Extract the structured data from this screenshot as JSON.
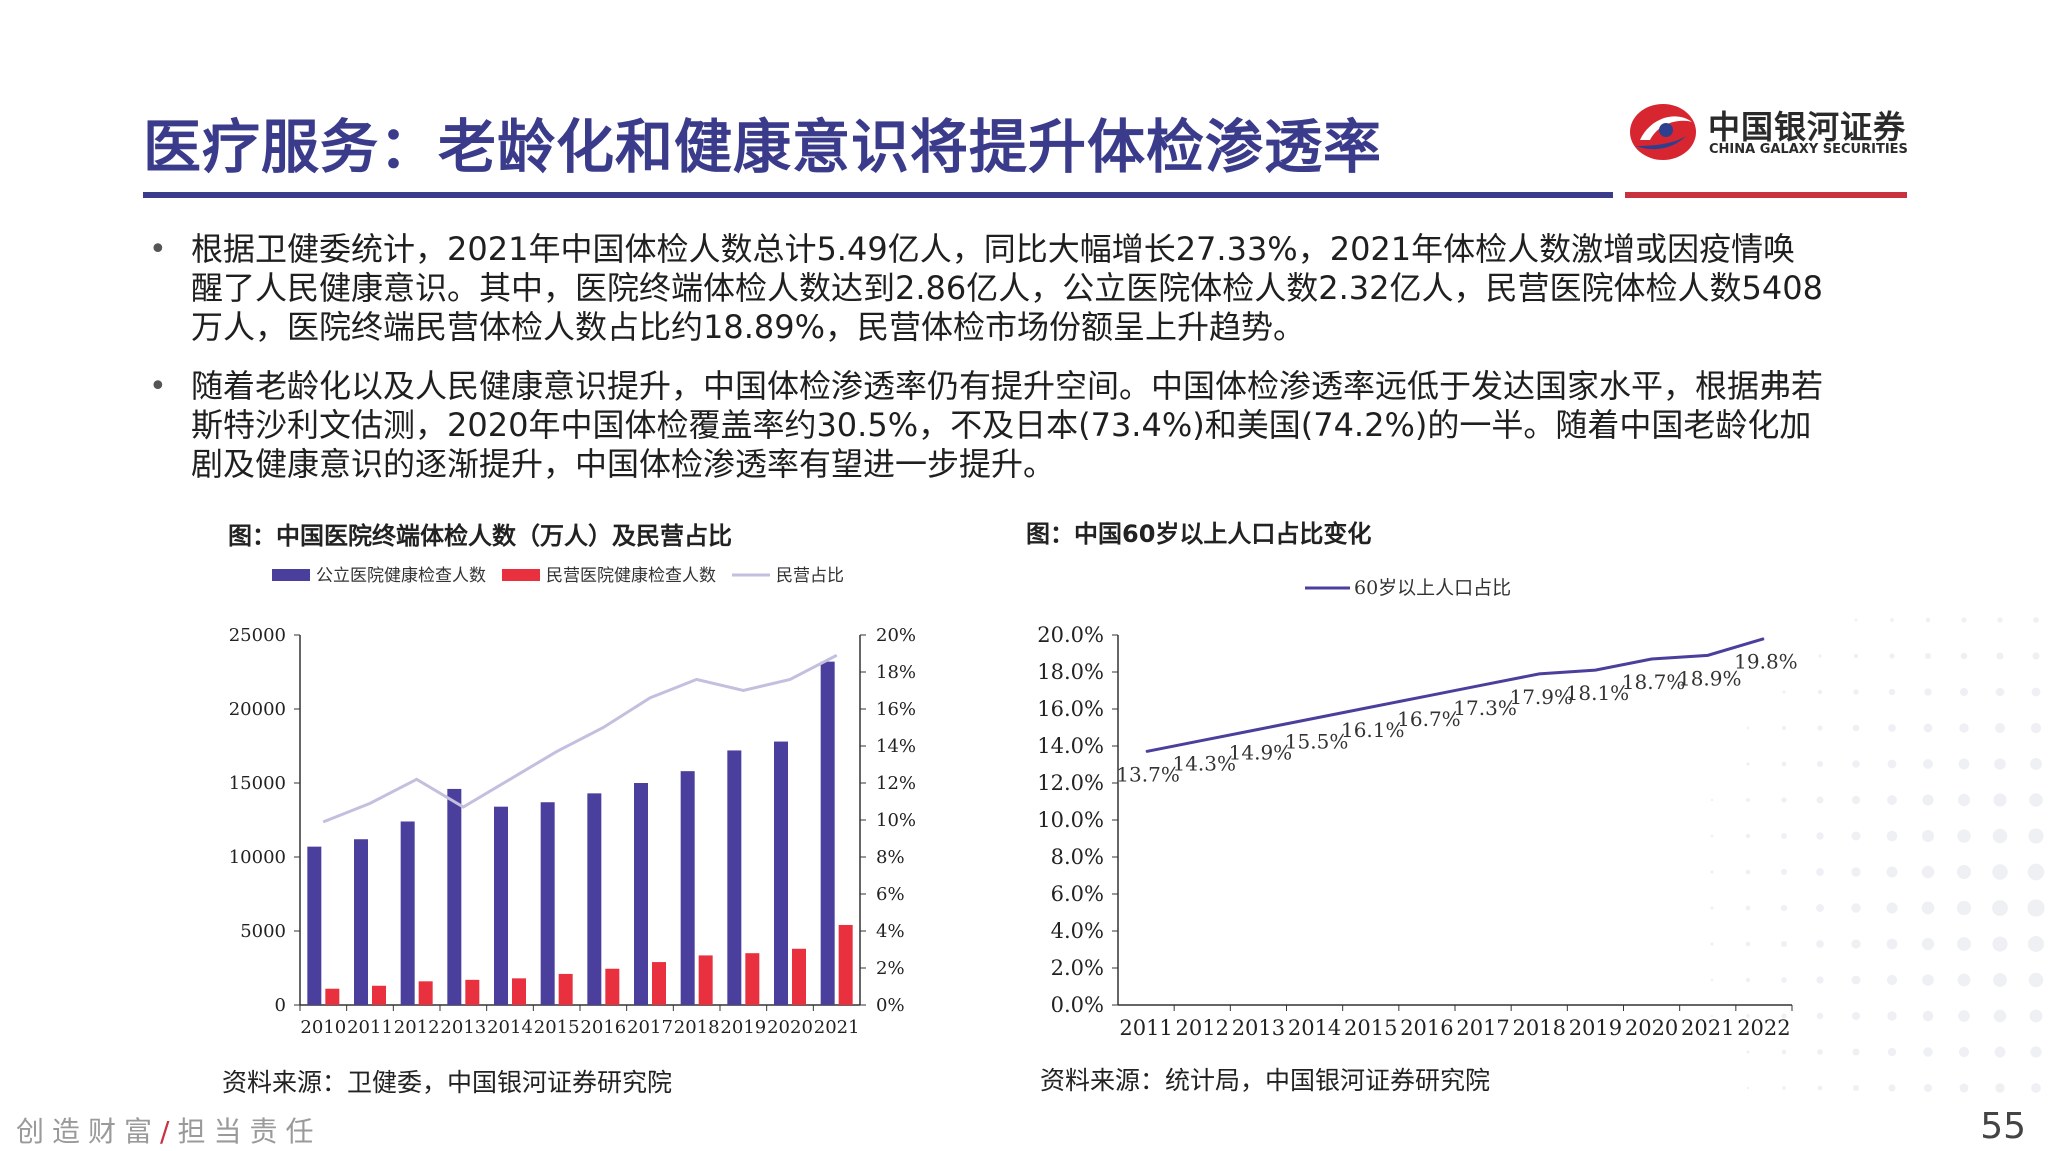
{
  "header": {
    "title": "医疗服务：老龄化和健康意识将提升体检渗透率",
    "logo_cn": "中国银河证券",
    "logo_en": "CHINA GALAXY SECURITIES",
    "brand_blue": "#3b3b8c",
    "brand_red": "#c8313e"
  },
  "bullets": [
    "根据卫健委统计，2021年中国体检人数总计5.49亿人，同比大幅增长27.33%，2021年体检人数激增或因疫情唤醒了人民健康意识。其中，医院终端体检人数达到2.86亿人，公立医院体检人数2.32亿人，民营医院体检人数5408万人，医院终端民营体检人数占比约18.89%，民营体检市场份额呈上升趋势。",
    "随着老龄化以及人民健康意识提升，中国体检渗透率仍有提升空间。中国体检渗透率远低于发达国家水平，根据弗若斯特沙利文估测，2020年中国体检覆盖率约30.5%，不及日本(73.4%)和美国(74.2%)的一半。随着中国老龄化加剧及健康意识的逐渐提升，中国体检渗透率有望进一步提升。"
  ],
  "bullet_symbol": "•",
  "figure_left": {
    "title": "图：中国医院终端体检人数（万人）及民营占比",
    "source": "资料来源：卫健委，中国银河证券研究院"
  },
  "figure_right": {
    "title": "图：中国60岁以上人口占比变化",
    "source": "资料来源：统计局，中国银河证券研究院"
  },
  "chart_data": [
    {
      "type": "bar",
      "categories": [
        "2010",
        "2011",
        "2012",
        "2013",
        "2014",
        "2015",
        "2016",
        "2017",
        "2018",
        "2019",
        "2020",
        "2021"
      ],
      "series": [
        {
          "name": "公立医院健康检查人数",
          "type": "bar",
          "axis": "left",
          "color": "#4a3f9c",
          "values": [
            10700,
            11200,
            12400,
            14600,
            13400,
            13700,
            14300,
            15000,
            15800,
            17200,
            17800,
            23200
          ]
        },
        {
          "name": "民营医院健康检查人数",
          "type": "bar",
          "axis": "left",
          "color": "#e8303e",
          "values": [
            1100,
            1300,
            1600,
            1700,
            1800,
            2100,
            2450,
            2900,
            3350,
            3500,
            3800,
            5408
          ]
        },
        {
          "name": "民营占比",
          "type": "line",
          "axis": "right",
          "color": "#c3bfde",
          "values": [
            9.9,
            10.9,
            12.2,
            10.7,
            12.2,
            13.7,
            15.0,
            16.6,
            17.6,
            17.0,
            17.6,
            18.9
          ]
        }
      ],
      "ylim": [
        0,
        25000
      ],
      "yticks": [
        "0",
        "5000",
        "10000",
        "15000",
        "20000",
        "25000"
      ],
      "y2lim": [
        0,
        20
      ],
      "y2ticks": [
        "0%",
        "2%",
        "4%",
        "6%",
        "8%",
        "10%",
        "12%",
        "14%",
        "16%",
        "18%",
        "20%"
      ],
      "legend_position": "top",
      "grid": false
    },
    {
      "type": "line",
      "categories": [
        "2011",
        "2012",
        "2013",
        "2014",
        "2015",
        "2016",
        "2017",
        "2018",
        "2019",
        "2020",
        "2021",
        "2022"
      ],
      "series": [
        {
          "name": "60岁以上人口占比",
          "color": "#4a3f9c",
          "values": [
            13.7,
            14.3,
            14.9,
            15.5,
            16.1,
            16.7,
            17.3,
            17.9,
            18.1,
            18.7,
            18.9,
            19.8
          ],
          "labels": [
            "13.7%",
            "14.3%",
            "14.9%",
            "15.5%",
            "16.1%",
            "16.7%",
            "17.3%",
            "17.9%",
            "18.1%",
            "18.7%",
            "18.9%",
            "19.8%"
          ]
        }
      ],
      "ylim": [
        0,
        20
      ],
      "yticks": [
        "0.0%",
        "2.0%",
        "4.0%",
        "6.0%",
        "8.0%",
        "10.0%",
        "12.0%",
        "14.0%",
        "16.0%",
        "18.0%",
        "20.0%"
      ],
      "legend_position": "top",
      "grid": false
    }
  ],
  "footer": {
    "slogan_left": "创造财富",
    "slogan_slash": "/",
    "slogan_right": "担当责任",
    "page_number": "55"
  }
}
